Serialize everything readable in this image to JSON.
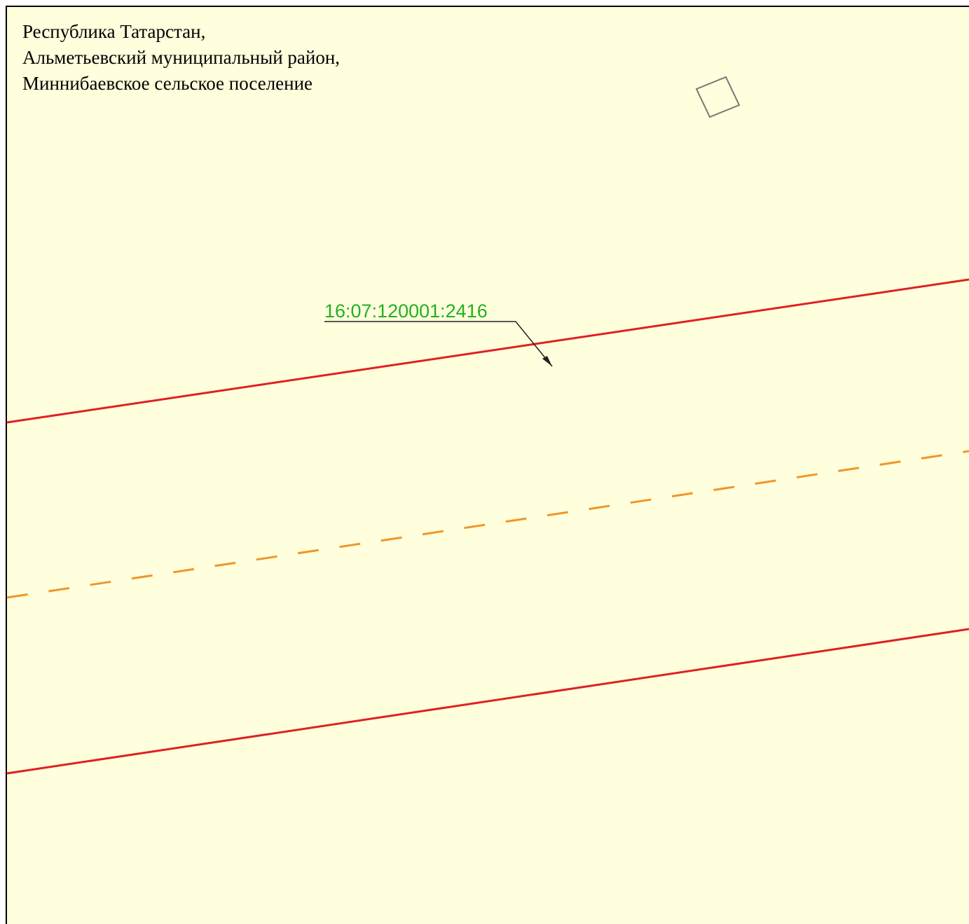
{
  "address": {
    "lines": [
      "Республика Татарстан,",
      "Альметьевский муниципальный район,",
      "Миннибаевское сельское поселение"
    ]
  },
  "parcel": {
    "label": "16:07:120001:2416"
  }
}
